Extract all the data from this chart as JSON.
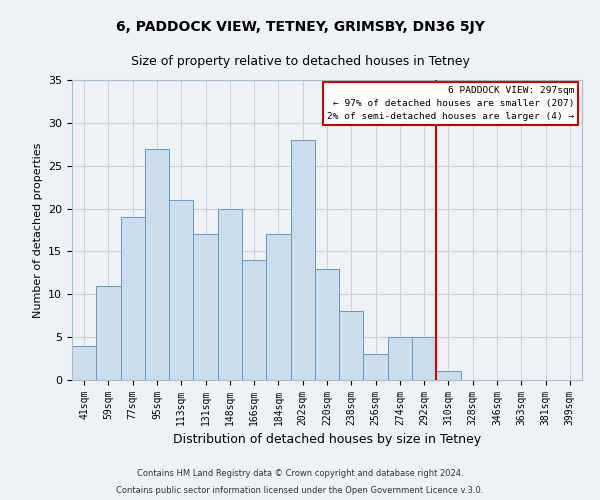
{
  "title": "6, PADDOCK VIEW, TETNEY, GRIMSBY, DN36 5JY",
  "subtitle": "Size of property relative to detached houses in Tetney",
  "xlabel": "Distribution of detached houses by size in Tetney",
  "ylabel": "Number of detached properties",
  "bar_labels": [
    "41sqm",
    "59sqm",
    "77sqm",
    "95sqm",
    "113sqm",
    "131sqm",
    "148sqm",
    "166sqm",
    "184sqm",
    "202sqm",
    "220sqm",
    "238sqm",
    "256sqm",
    "274sqm",
    "292sqm",
    "310sqm",
    "328sqm",
    "346sqm",
    "363sqm",
    "381sqm",
    "399sqm"
  ],
  "bar_heights": [
    4,
    11,
    19,
    27,
    21,
    17,
    20,
    14,
    17,
    28,
    13,
    8,
    3,
    5,
    5,
    1,
    0,
    0,
    0,
    0,
    0
  ],
  "bar_color": "#ccdcec",
  "bar_edge_color": "#6699bb",
  "vline_x": 14.5,
  "vline_color": "#cc0000",
  "ylim": [
    0,
    35
  ],
  "yticks": [
    0,
    5,
    10,
    15,
    20,
    25,
    30,
    35
  ],
  "legend_title": "6 PADDOCK VIEW: 297sqm",
  "legend_line1": "← 97% of detached houses are smaller (207)",
  "legend_line2": "2% of semi-detached houses are larger (4) →",
  "legend_box_color": "#cc0000",
  "footer_line1": "Contains HM Land Registry data © Crown copyright and database right 2024.",
  "footer_line2": "Contains public sector information licensed under the Open Government Licence v.3.0.",
  "grid_color": "#c8d4dc",
  "background_color": "#eef2f6",
  "title_fontsize": 10,
  "subtitle_fontsize": 9,
  "xlabel_fontsize": 9,
  "ylabel_fontsize": 8,
  "tick_fontsize": 7,
  "footer_fontsize": 6
}
